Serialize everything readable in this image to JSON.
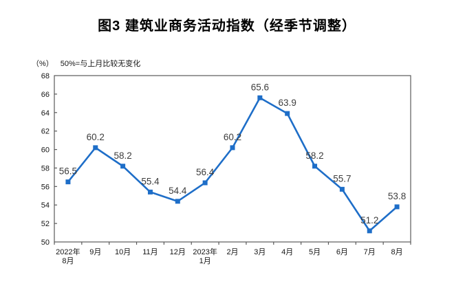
{
  "title": "图3 建筑业商务活动指数（经季节调整）",
  "axis_note": {
    "unit": "（%）",
    "text": "50%=与上月比较无变化"
  },
  "chart_data": {
    "type": "line",
    "title": "图3 建筑业商务活动指数（经季节调整）",
    "unit_note": "（%） 50%=与上月比较无变化",
    "categories": [
      "2022年\n8月",
      "9月",
      "10月",
      "11月",
      "12月",
      "2023年\n1月",
      "2月",
      "3月",
      "4月",
      "5月",
      "6月",
      "7月",
      "8月"
    ],
    "series": [
      {
        "name": "建筑业商务活动指数",
        "values": [
          56.5,
          60.2,
          58.2,
          55.4,
          54.4,
          56.4,
          60.2,
          65.6,
          63.9,
          58.2,
          55.7,
          51.2,
          53.8
        ]
      }
    ],
    "data_labels": [
      "56.5",
      "60.2",
      "58.2",
      "55.4",
      "54.4",
      "56.4",
      "60.2",
      "65.6",
      "63.9",
      "58.2",
      "55.7",
      "51.2",
      "53.8"
    ],
    "ylim": [
      50,
      68
    ],
    "yticks": [
      50,
      52,
      54,
      56,
      58,
      60,
      62,
      64,
      66,
      68
    ],
    "grid": false,
    "legend_position": "none",
    "marker": "square",
    "colors": {
      "line": "#1e6ec8",
      "marker": "#1e6ec8",
      "data_label": "#3d3d3d",
      "axis": "#595959",
      "tick_label": "#141414",
      "background": "#ffffff"
    }
  }
}
